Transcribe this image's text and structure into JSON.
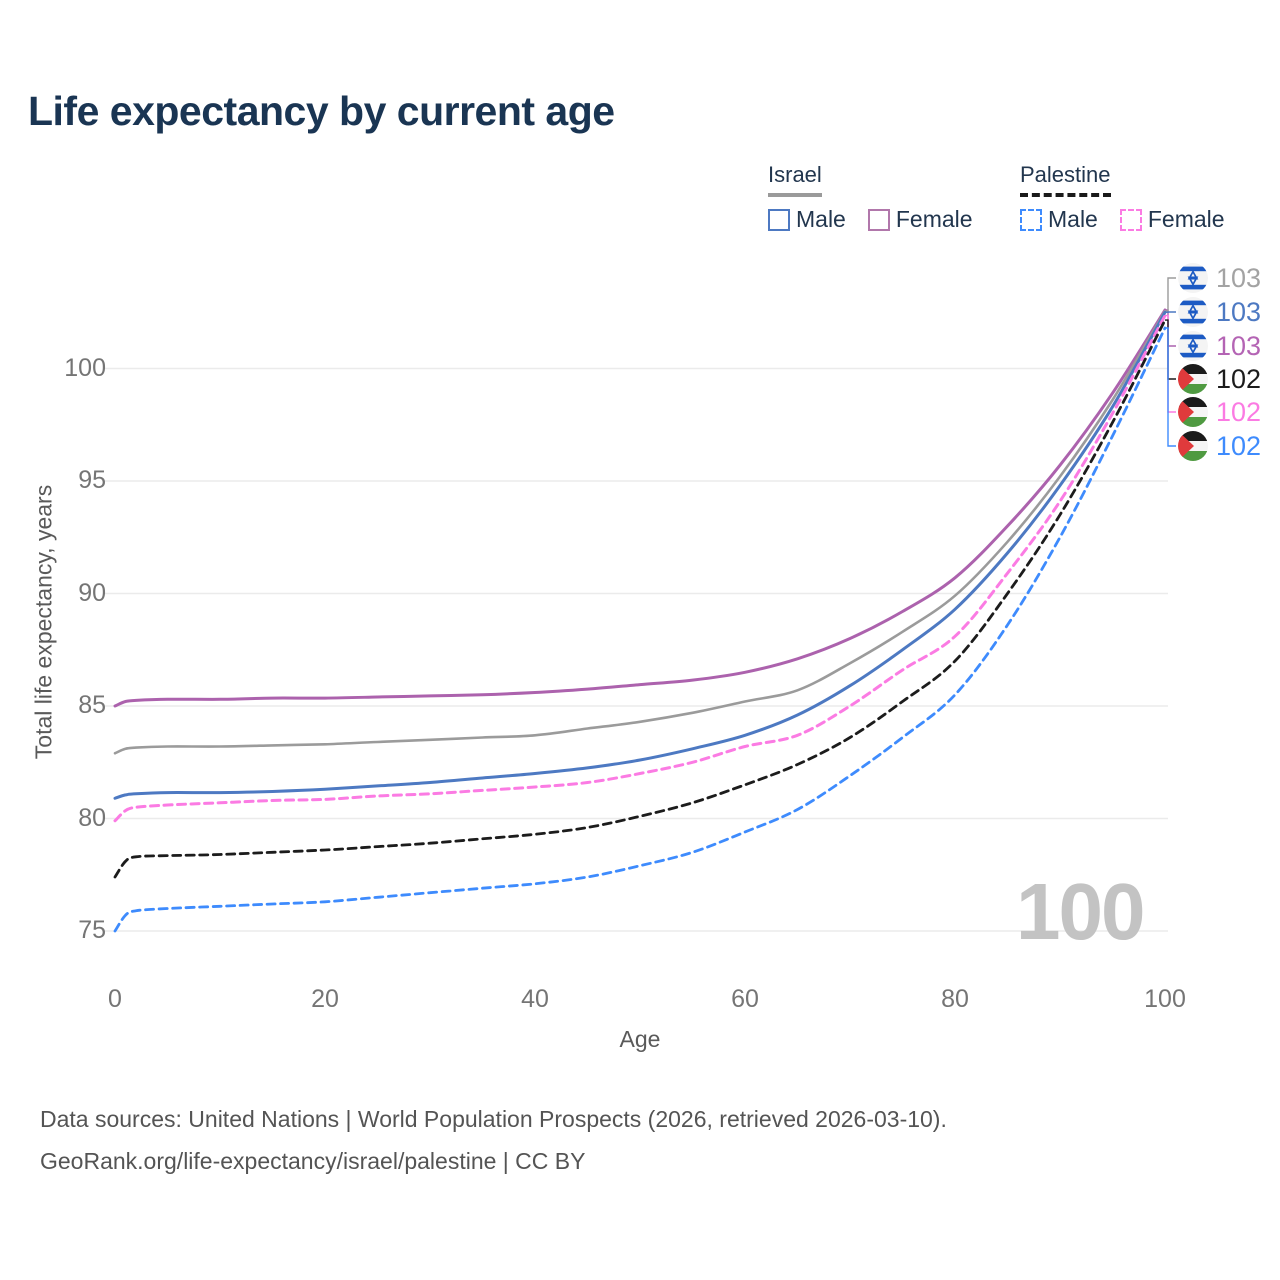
{
  "title": "Life expectancy by current age",
  "legend": {
    "groups": [
      {
        "name": "Israel",
        "line_style": "solid",
        "underline_color": "#9a9a9a",
        "items": [
          {
            "label": "Male",
            "color": "#4d79c2",
            "dashed": false
          },
          {
            "label": "Female",
            "color": "#b177ab",
            "dashed": false
          }
        ]
      },
      {
        "name": "Palestine",
        "line_style": "dashed",
        "underline_color": "#1a1a1a",
        "items": [
          {
            "label": "Male",
            "color": "#3e8bfd",
            "dashed": true
          },
          {
            "label": "Female",
            "color": "#fb7be3",
            "dashed": true
          }
        ]
      }
    ]
  },
  "chart_data": {
    "type": "line",
    "title": "Life expectancy by current age",
    "xlabel": "Age",
    "ylabel": "Total life expectancy, years",
    "xlim": [
      0,
      100
    ],
    "ylim": [
      75,
      100
    ],
    "xticks": [
      0,
      20,
      40,
      60,
      80,
      100
    ],
    "yticks": [
      75,
      80,
      85,
      90,
      95,
      100
    ],
    "grid": "horizontal",
    "legend_position": "top-right",
    "x": [
      0,
      1,
      2,
      5,
      10,
      15,
      20,
      25,
      30,
      35,
      40,
      45,
      50,
      55,
      60,
      65,
      70,
      75,
      80,
      85,
      90,
      95,
      100
    ],
    "series": [
      {
        "name": "Israel female",
        "country": "Israel",
        "sex": "Female",
        "color": "#ac62ad",
        "dashed": false,
        "width": 3,
        "values": [
          85.0,
          85.2,
          85.25,
          85.3,
          85.3,
          85.35,
          85.35,
          85.4,
          85.45,
          85.5,
          85.6,
          85.75,
          85.95,
          86.15,
          86.5,
          87.1,
          88.0,
          89.2,
          90.7,
          93.0,
          95.7,
          98.9,
          102.6
        ],
        "end_label": {
          "flag": "israel",
          "value": "103",
          "color": "#b464b4",
          "row": 2
        }
      },
      {
        "name": "Israel both sexes",
        "country": "Israel",
        "sex": "Both",
        "color": "#9b9b9b",
        "dashed": false,
        "width": 2.6,
        "values": [
          82.9,
          83.1,
          83.15,
          83.2,
          83.2,
          83.25,
          83.3,
          83.4,
          83.5,
          83.6,
          83.7,
          84.0,
          84.3,
          84.7,
          85.2,
          85.7,
          86.9,
          88.3,
          89.9,
          92.3,
          95.2,
          98.6,
          102.55
        ],
        "end_label": {
          "flag": "israel",
          "value": "103",
          "color": "#a3a3a3",
          "row": 0
        }
      },
      {
        "name": "Israel male",
        "country": "Israel",
        "sex": "Male",
        "color": "#4d79c2",
        "dashed": false,
        "width": 3,
        "values": [
          80.9,
          81.05,
          81.1,
          81.15,
          81.15,
          81.2,
          81.3,
          81.45,
          81.6,
          81.8,
          82.0,
          82.25,
          82.6,
          83.1,
          83.7,
          84.6,
          85.9,
          87.5,
          89.3,
          91.8,
          94.8,
          98.3,
          102.5
        ],
        "end_label": {
          "flag": "israel",
          "value": "103",
          "color": "#4d79c2",
          "row": 1
        }
      },
      {
        "name": "Palestine female",
        "country": "Palestine",
        "sex": "Female",
        "color": "#fb7be3",
        "dashed": true,
        "width": 3,
        "values": [
          79.9,
          80.35,
          80.5,
          80.6,
          80.7,
          80.8,
          80.85,
          81.0,
          81.1,
          81.25,
          81.4,
          81.6,
          82.0,
          82.5,
          83.2,
          83.7,
          85.0,
          86.6,
          88.1,
          90.9,
          94.1,
          98.0,
          102.35
        ],
        "end_label": {
          "flag": "palestine",
          "value": "102",
          "color": "#fb7be3",
          "row": 4
        }
      },
      {
        "name": "Palestine both sexes",
        "country": "Palestine",
        "sex": "Both",
        "color": "#1c1c1c",
        "dashed": true,
        "width": 2.8,
        "values": [
          77.4,
          78.1,
          78.3,
          78.35,
          78.4,
          78.5,
          78.6,
          78.75,
          78.9,
          79.1,
          79.3,
          79.6,
          80.1,
          80.7,
          81.5,
          82.4,
          83.6,
          85.2,
          87.0,
          90.0,
          93.5,
          97.6,
          102.15
        ],
        "end_label": {
          "flag": "palestine",
          "value": "102",
          "color": "#1c1c1c",
          "row": 3
        }
      },
      {
        "name": "Palestine male",
        "country": "Palestine",
        "sex": "Male",
        "color": "#3e8bfd",
        "dashed": true,
        "width": 2.8,
        "values": [
          75.0,
          75.7,
          75.9,
          76.0,
          76.1,
          76.2,
          76.3,
          76.5,
          76.7,
          76.9,
          77.1,
          77.4,
          77.9,
          78.5,
          79.4,
          80.4,
          81.9,
          83.6,
          85.5,
          88.6,
          92.5,
          97.0,
          101.8
        ],
        "end_label": {
          "flag": "palestine",
          "value": "102",
          "color": "#3e8bfd",
          "row": 5
        }
      }
    ]
  },
  "annotation": {
    "watermark_age": "100"
  },
  "footer": {
    "line1": "Data sources: United Nations | World Population Prospects (2026, retrieved 2026-03-10).",
    "line2": "GeoRank.org/life-expectancy/israel/palestine | CC BY"
  },
  "colors": {
    "title_text": "#1a3553",
    "axis_text": "#757575",
    "axis_title_text": "#5a5a5a",
    "gridline": "#ebebeb",
    "watermark": "#c3c3c3",
    "footer_text": "#545454",
    "israel_flag_blue": "#1d5bc4",
    "palestine_flag_red": "#e03a3c",
    "palestine_flag_green": "#4f9a41"
  }
}
